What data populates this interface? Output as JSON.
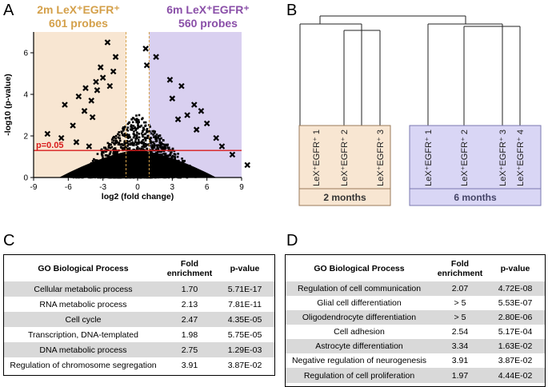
{
  "panels": {
    "a": "A",
    "b": "B",
    "c": "C",
    "d": "D"
  },
  "volcano": {
    "left_group": {
      "line1": "2m LeX⁺EGFR⁺",
      "line2": "601 probes",
      "color": "#d4a04a"
    },
    "right_group": {
      "line1": "6m LeX⁺EGFR⁺",
      "line2": "560 probes",
      "color": "#8a4fa8"
    },
    "threshold_label": "p=0.05",
    "threshold_color": "#d91c1c",
    "fc_cutoff": 1.0,
    "left_shade": "#f8e6d2",
    "right_shade": "#d9d0f0"
  },
  "chart_data": {
    "type": "scatter",
    "title": "",
    "xlabel": "log2 (fold change)",
    "ylabel": "-log10 (p-value)",
    "xlim": [
      -9,
      9
    ],
    "ylim": [
      0,
      7
    ],
    "xticks": [
      -9,
      -6,
      -3,
      0,
      3,
      6,
      9
    ],
    "yticks": [
      0,
      2,
      4,
      6
    ],
    "threshold_y": 1.3,
    "highlight_points": [
      {
        "x": -2.6,
        "y": 6.5
      },
      {
        "x": -1.9,
        "y": 5.8
      },
      {
        "x": -3.2,
        "y": 5.3
      },
      {
        "x": -2.1,
        "y": 5.1
      },
      {
        "x": -3.0,
        "y": 4.8
      },
      {
        "x": -3.6,
        "y": 4.6
      },
      {
        "x": -4.5,
        "y": 4.3
      },
      {
        "x": -3.5,
        "y": 4.2
      },
      {
        "x": -2.4,
        "y": 4.4
      },
      {
        "x": -5.1,
        "y": 3.9
      },
      {
        "x": -4.0,
        "y": 3.7
      },
      {
        "x": -6.3,
        "y": 3.5
      },
      {
        "x": -4.6,
        "y": 3.2
      },
      {
        "x": -3.9,
        "y": 2.9
      },
      {
        "x": -5.6,
        "y": 2.5
      },
      {
        "x": -7.8,
        "y": 2.1
      },
      {
        "x": -6.6,
        "y": 1.9
      },
      {
        "x": -5.3,
        "y": 1.7
      },
      {
        "x": -4.2,
        "y": 1.5
      },
      {
        "x": 0.7,
        "y": 6.2
      },
      {
        "x": 1.6,
        "y": 5.8
      },
      {
        "x": 0.8,
        "y": 5.4
      },
      {
        "x": 2.8,
        "y": 4.7
      },
      {
        "x": 3.8,
        "y": 4.4
      },
      {
        "x": 3.0,
        "y": 3.8
      },
      {
        "x": 4.9,
        "y": 3.5
      },
      {
        "x": 5.5,
        "y": 3.2
      },
      {
        "x": 4.3,
        "y": 3.0
      },
      {
        "x": 3.5,
        "y": 2.8
      },
      {
        "x": 6.0,
        "y": 2.6
      },
      {
        "x": 5.1,
        "y": 2.3
      },
      {
        "x": 6.8,
        "y": 1.9
      },
      {
        "x": 7.3,
        "y": 1.5
      },
      {
        "x": 8.2,
        "y": 1.1
      },
      {
        "x": 9.5,
        "y": 0.6
      }
    ]
  },
  "dendrogram": {
    "groups": [
      {
        "label": "2 months",
        "fill": "#f8e6d2",
        "border": "#9a7a5a",
        "samples": [
          "LeX⁺EGFR⁺ 1",
          "LeX⁺EGFR⁺ 2",
          "LeX⁺EGFR⁺ 3"
        ]
      },
      {
        "label": "6 months",
        "fill": "#d9d6f5",
        "border": "#7a78b0",
        "samples": [
          "LeX⁺EGFR⁺ 1",
          "LeX⁺EGFR⁺ 2",
          "LeX⁺EGFR⁺ 3",
          "LeX⁺EGFR⁺ 4"
        ]
      }
    ]
  },
  "table_c": {
    "headers": {
      "process": "GO Biological Process",
      "fold_line1": "Fold",
      "fold_line2": "enrichment",
      "pvalue": "p-value"
    },
    "rows": [
      {
        "process": "Cellular metabolic process",
        "fold": "1.70",
        "pvalue": "5.71E-17"
      },
      {
        "process": "RNA metabolic process",
        "fold": "2.13",
        "pvalue": "7.81E-11"
      },
      {
        "process": "Cell cycle",
        "fold": "2.47",
        "pvalue": "4.35E-05"
      },
      {
        "process": "Transcription, DNA-templated",
        "fold": "1.98",
        "pvalue": "5.75E-05"
      },
      {
        "process": "DNA metabolic process",
        "fold": "2.75",
        "pvalue": "1.29E-03"
      },
      {
        "process": "Regulation of chromosome segregation",
        "fold": "3.91",
        "pvalue": "3.87E-02"
      }
    ]
  },
  "table_d": {
    "headers": {
      "process": "GO Biological Process",
      "fold_line1": "Fold",
      "fold_line2": "enrichment",
      "pvalue": "p-value"
    },
    "rows": [
      {
        "process": "Regulation of cell communication",
        "fold": "2.07",
        "pvalue": "4.72E-08"
      },
      {
        "process": "Glial cell differentiation",
        "fold": "> 5",
        "pvalue": "5.53E-07"
      },
      {
        "process": "Oligodendrocyte differentiation",
        "fold": "> 5",
        "pvalue": "2.80E-06"
      },
      {
        "process": "Cell adhesion",
        "fold": "2.54",
        "pvalue": "5.17E-04"
      },
      {
        "process": "Astrocyte differentiation",
        "fold": "3.34",
        "pvalue": "1.63E-02"
      },
      {
        "process": "Negative regulation of neurogenesis",
        "fold": "3.91",
        "pvalue": "3.87E-02"
      },
      {
        "process": "Regulation of cell proliferation",
        "fold": "1.97",
        "pvalue": "4.44E-02"
      }
    ]
  }
}
